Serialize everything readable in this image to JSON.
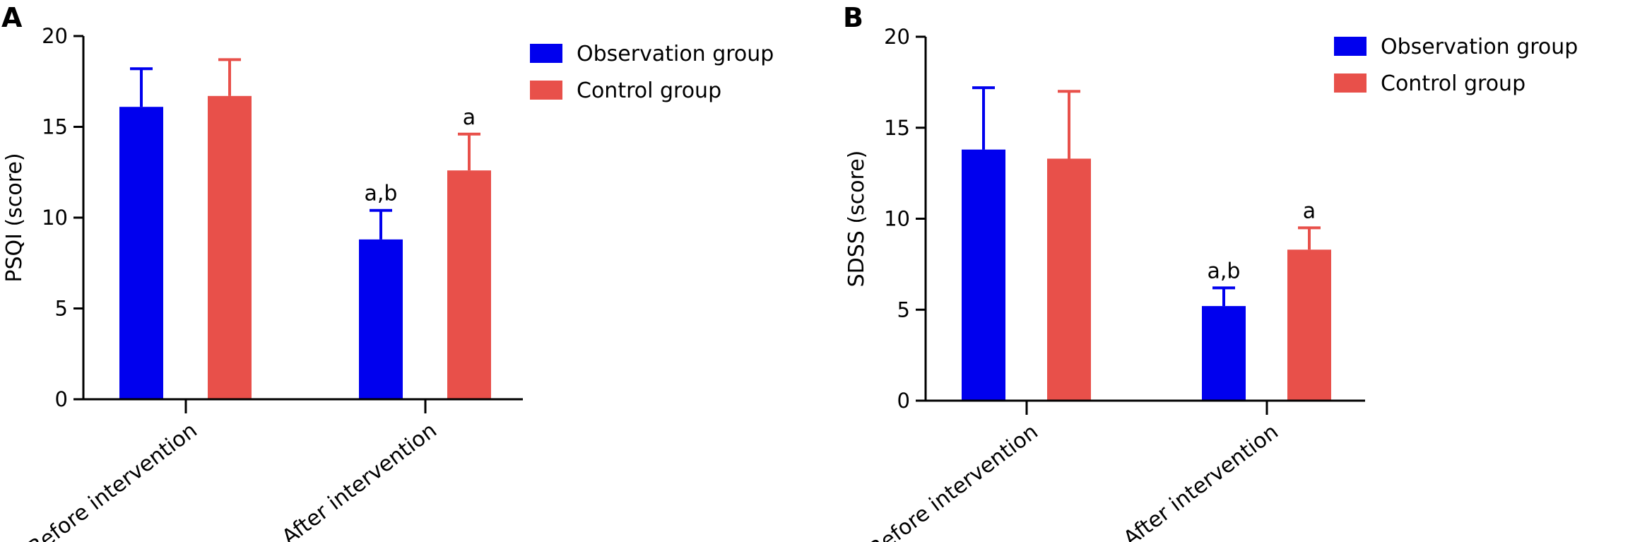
{
  "colors": {
    "observation": "#0000EE",
    "control": "#E8504A",
    "axis": "#000000"
  },
  "chart_data": [
    {
      "panel_label": "A",
      "type": "bar",
      "categories": [
        "Before intervention",
        "After intervention"
      ],
      "ylabel": "PSQI (score)",
      "ylim": [
        0,
        20
      ],
      "yticks": [
        0,
        5,
        10,
        15,
        20
      ],
      "legend_position": "top-right",
      "series": [
        {
          "name": "Observation group",
          "color_key": "observation",
          "values": [
            16.1,
            8.8
          ],
          "errors": [
            2.1,
            1.6
          ],
          "annotations": [
            "",
            "a,b"
          ]
        },
        {
          "name": "Control group",
          "color_key": "control",
          "values": [
            16.7,
            12.6
          ],
          "errors": [
            2.0,
            2.0
          ],
          "annotations": [
            "",
            "a"
          ]
        }
      ]
    },
    {
      "panel_label": "B",
      "type": "bar",
      "categories": [
        "Before intervention",
        "After intervention"
      ],
      "ylabel": "SDSS (score)",
      "ylim": [
        0,
        20
      ],
      "yticks": [
        0,
        5,
        10,
        15,
        20
      ],
      "legend_position": "top-right",
      "series": [
        {
          "name": "Observation group",
          "color_key": "observation",
          "values": [
            13.8,
            5.2
          ],
          "errors": [
            3.4,
            1.0
          ],
          "annotations": [
            "",
            "a,b"
          ]
        },
        {
          "name": "Control group",
          "color_key": "control",
          "values": [
            13.3,
            8.3
          ],
          "errors": [
            3.7,
            1.2
          ],
          "annotations": [
            "",
            "a"
          ]
        }
      ]
    }
  ]
}
